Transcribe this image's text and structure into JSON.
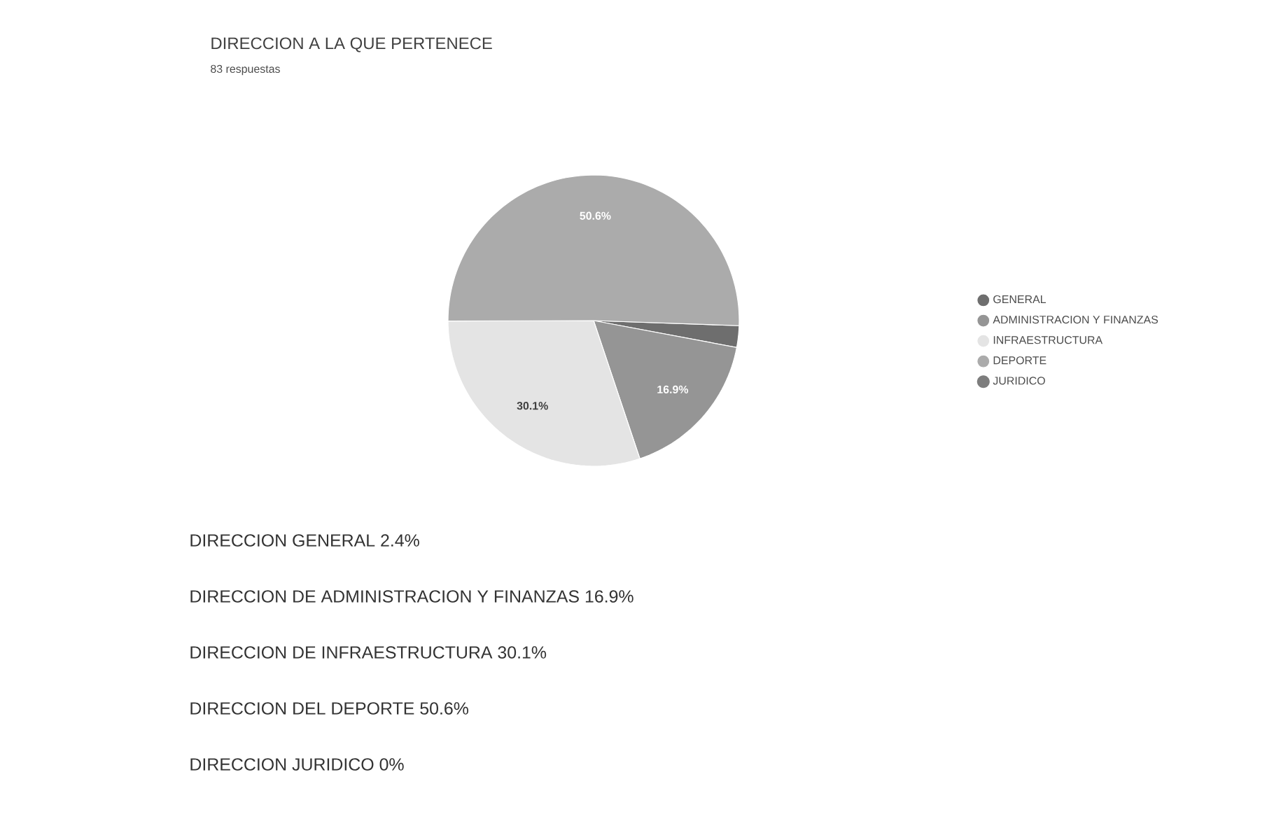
{
  "chart_data": {
    "type": "pie",
    "title": "DIRECCION A LA QUE PERTENECE",
    "subtitle": "83 respuestas",
    "categories": [
      "GENERAL",
      "ADMINISTRACION Y FINANZAS",
      "INFRAESTRUCTURA",
      "DEPORTE",
      "JURIDICO"
    ],
    "values": [
      2.4,
      16.9,
      30.1,
      50.6,
      0
    ],
    "colors": [
      "#6e6e6e",
      "#959595",
      "#e4e4e4",
      "#ababab",
      "#7d7d7d"
    ],
    "value_labels": [
      null,
      "16.9%",
      "30.1%",
      "50.6%",
      null
    ],
    "legend": "right",
    "annotations": [
      "DIRECCION GENERAL 2.4%",
      "DIRECCION DE ADMINISTRACION Y FINANZAS 16.9%",
      "DIRECCION DE INFRAESTRUCTURA 30.1%",
      "DIRECCION DEL DEPORTE 50.6%",
      "DIRECCION JURIDICO 0%"
    ]
  }
}
